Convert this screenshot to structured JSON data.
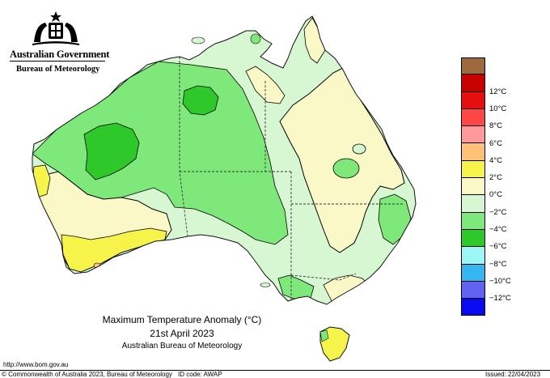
{
  "header": {
    "government": "Australian Government",
    "bureau": "Bureau of Meteorology"
  },
  "map": {
    "title": "Maximum Temperature Anomaly (°C)",
    "date": "21st April 2023",
    "source": "Australian Bureau of Meteorology"
  },
  "legend": {
    "items": [
      {
        "label": "",
        "color": "#9c6a3c"
      },
      {
        "label": "12°C",
        "color": "#c80000"
      },
      {
        "label": "10°C",
        "color": "#e60f0f"
      },
      {
        "label": "8°C",
        "color": "#ff4646"
      },
      {
        "label": "6°C",
        "color": "#ff9999"
      },
      {
        "label": "4°C",
        "color": "#ffc078"
      },
      {
        "label": "2°C",
        "color": "#f6f34a"
      },
      {
        "label": "0°C",
        "color": "#fbf8c8"
      },
      {
        "label": "−2°C",
        "color": "#d7f7d2"
      },
      {
        "label": "−4°C",
        "color": "#7fe87a"
      },
      {
        "label": "−6°C",
        "color": "#2fc82a"
      },
      {
        "label": "−8°C",
        "color": "#9cf6f6"
      },
      {
        "label": "−10°C",
        "color": "#36b6ee"
      },
      {
        "label": "−12°C",
        "color": "#6262f0"
      },
      {
        "label": "",
        "color": "#0a0af0"
      }
    ]
  },
  "footer": {
    "url": "http://www.bom.gov.au",
    "copyright": "© Commonwealth of Australia 2023, Bureau of Meteorology",
    "id_code": "ID code: AWAP",
    "issued": "Issued: 22/04/2023"
  },
  "colors": {
    "above_0_2": "#fbf8c8",
    "above_2_4": "#f6f34a",
    "above_4_6": "#ffc078",
    "below_0_2": "#d7f7d2",
    "below_2_4": "#7fe87a",
    "below_4_6": "#2fc82a"
  }
}
